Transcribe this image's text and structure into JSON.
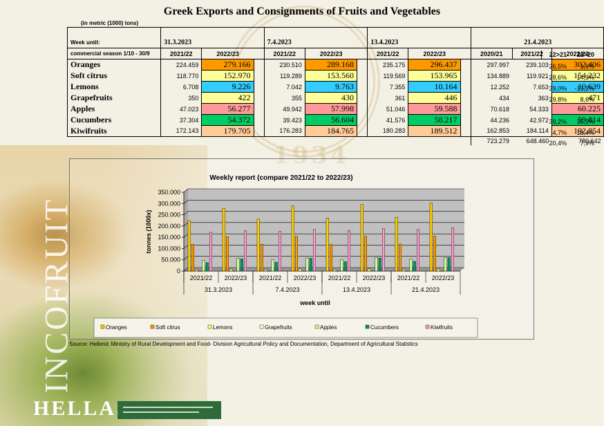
{
  "title": "Greek Exports and Consignments of Fruits and Vegetables",
  "units_note": "(in metric (1000) tons)",
  "table": {
    "week_label": "Week until:",
    "season_label": "commercial season 1/10 - 30/9",
    "weeks": [
      "31.3.2023",
      "7.4.2023",
      "13.4.2023",
      "21.4.2023"
    ],
    "season_headers": [
      "2021/22",
      "2022/23",
      "2021/22",
      "2022/23",
      "2021/22",
      "2022/23",
      "2020/21",
      "2021/22",
      "2022/23"
    ],
    "pct_headers": [
      "22>21",
      "22>20"
    ],
    "rows": [
      {
        "product": "Oranges",
        "cells": [
          "224.459",
          "279.166",
          "230.510",
          "289.168",
          "235.175",
          "296.437",
          "297.997",
          "239.103",
          "302.406"
        ],
        "pct": [
          "26,5%",
          "1,5%"
        ]
      },
      {
        "product": "Soft citrus",
        "cells": [
          "118.770",
          "152.970",
          "119.289",
          "153.560",
          "119.569",
          "153.965",
          "134.889",
          "119.921",
          "154.232"
        ],
        "pct": [
          "28,6%",
          "14,3%"
        ]
      },
      {
        "product": "Lemons",
        "cells": [
          "6.708",
          "9.226",
          "7.042",
          "9.763",
          "7.355",
          "10.164",
          "12.252",
          "7.653",
          "10.639"
        ],
        "pct": [
          "39,0%",
          "-13,2%"
        ]
      },
      {
        "product": "Grapefruits",
        "cells": [
          "350",
          "422",
          "355",
          "430",
          "361",
          "446",
          "434",
          "363",
          "471"
        ],
        "pct": [
          "29,8%",
          "8,6%"
        ]
      },
      {
        "product": "Apples",
        "cells": [
          "47.023",
          "56.277",
          "49.942",
          "57.998",
          "51.046",
          "59.588",
          "70.618",
          "54.333",
          "60.225"
        ],
        "pct": [
          "",
          ""
        ]
      },
      {
        "product": "Cucumbers",
        "cells": [
          "37.304",
          "54.372",
          "39.423",
          "56.604",
          "41.576",
          "58.217",
          "44.236",
          "42.972",
          "59.814"
        ],
        "pct": [
          "39,2%",
          "35,2%"
        ]
      },
      {
        "product": "Kiwifruits",
        "cells": [
          "172.143",
          "179.705",
          "176.283",
          "184.765",
          "180.283",
          "189.512",
          "162.853",
          "184.114",
          "192.854"
        ],
        "pct": [
          "4,7%",
          "18,4%"
        ]
      }
    ],
    "totals": [
      "723.279",
      "648.460",
      "780.642"
    ],
    "totals_pct": [
      "20,4%",
      "7,9%"
    ],
    "highlight_colors": {
      "Oranges": "#ff9900",
      "Soft citrus": "#ffff99",
      "Lemons": "#33ccff",
      "Grapefruits": "#ffff99",
      "Apples": "#ff9999",
      "Cucumbers": "#00cc66",
      "Kiwifruits": "#ffcc99"
    }
  },
  "chart_data": {
    "type": "bar",
    "title": "Weekly report (compare 2021/22 to 2022/23)",
    "xlabel": "week until",
    "ylabel": "tonnes (1000x)",
    "ylim": [
      0,
      350000
    ],
    "yticks": [
      "0",
      "50.000",
      "100.000",
      "150.000",
      "200.000",
      "250.000",
      "300.000",
      "350.000"
    ],
    "grid": true,
    "legend": "bottom",
    "categories": [
      "2021/22",
      "2022/23",
      "2021/22",
      "2022/23",
      "2021/22",
      "2022/23",
      "2021/22",
      "2022/23"
    ],
    "groups": [
      "31.3.2023",
      "7.4.2023",
      "13.4.2023",
      "21.4.2023"
    ],
    "series": [
      {
        "name": "Oranges",
        "color": "#ffcc00",
        "values": [
          224459,
          279166,
          230510,
          289168,
          235175,
          296437,
          239103,
          302406
        ]
      },
      {
        "name": "Soft citrus",
        "color": "#ff9900",
        "values": [
          118770,
          152970,
          119289,
          153560,
          119569,
          153965,
          119921,
          154232
        ]
      },
      {
        "name": "Lemons",
        "color": "#ffff66",
        "values": [
          6708,
          9226,
          7042,
          9763,
          7355,
          10164,
          7653,
          10639
        ]
      },
      {
        "name": "Grapefruits",
        "color": "#ffffcc",
        "values": [
          350,
          422,
          355,
          430,
          361,
          446,
          363,
          471
        ]
      },
      {
        "name": "Apples",
        "color": "#ccff99",
        "values": [
          47023,
          56277,
          49942,
          57998,
          51046,
          59588,
          54333,
          60225
        ]
      },
      {
        "name": "Cucumbers",
        "color": "#009966",
        "values": [
          37304,
          54372,
          39423,
          56604,
          41576,
          58217,
          42972,
          59814
        ]
      },
      {
        "name": "Kiwifruits",
        "color": "#ff99cc",
        "values": [
          172143,
          179705,
          176283,
          184765,
          180283,
          189512,
          184114,
          192854
        ]
      }
    ]
  },
  "source": "Source: Hellenic Ministry of Rural Development and Food- Division Agricultural Policy and Documentation, Department of Agricultural Statistics",
  "branding": {
    "vertical": "INCOFRUIT",
    "bottom": "HELLAS",
    "seal_year": "1934"
  }
}
